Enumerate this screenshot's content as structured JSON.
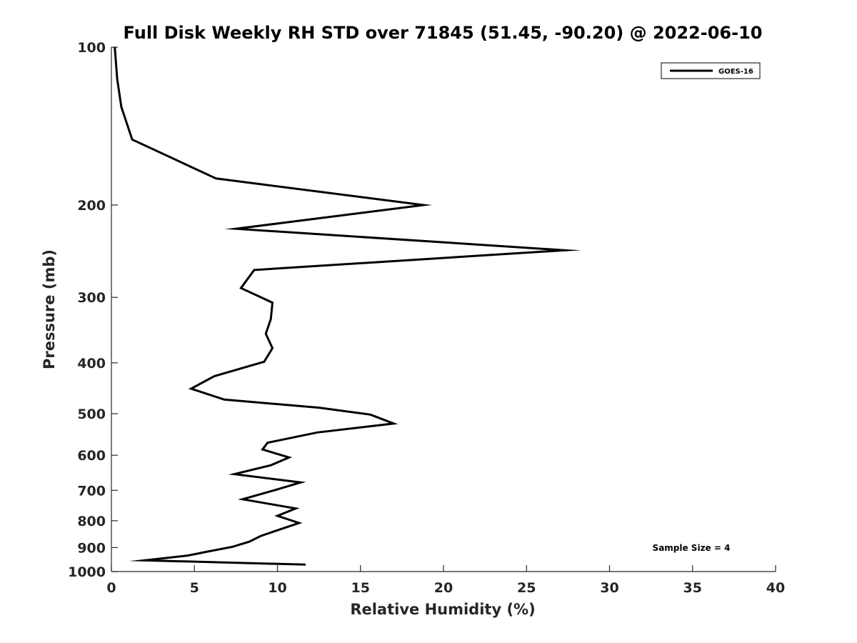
{
  "chart_data": {
    "type": "line",
    "title": "Full Disk Weekly RH STD over 71845 (51.45, -90.20) @ 2022-06-10",
    "xlabel": "Relative Humidity (%)",
    "ylabel": "Pressure (mb)",
    "xlim": [
      0,
      40
    ],
    "ylim": [
      100,
      1000
    ],
    "y_scale": "log",
    "y_reversed": true,
    "x_ticks": [
      0,
      5,
      10,
      15,
      20,
      25,
      30,
      35,
      40
    ],
    "y_ticks": [
      100,
      200,
      300,
      400,
      500,
      600,
      700,
      800,
      900,
      1000
    ],
    "grid": false,
    "legend": {
      "position": "top-right",
      "entries": [
        "GOES-16"
      ]
    },
    "annotation": "Sample Size = 4",
    "series": [
      {
        "name": "GOES-16",
        "color": "#000000",
        "x": [
          0.2,
          0.35,
          0.6,
          1.25,
          6.3,
          18.8,
          7.5,
          27.3,
          8.6,
          7.8,
          9.7,
          9.6,
          9.3,
          9.7,
          9.2,
          6.2,
          4.8,
          6.8,
          12.5,
          15.6,
          17.0,
          12.4,
          9.4,
          9.1,
          10.7,
          9.6,
          7.4,
          11.4,
          9.8,
          7.9,
          11.1,
          10.0,
          11.3,
          10.1,
          9.0,
          8.3,
          7.3,
          5.8,
          4.6,
          2.0,
          11.7
        ],
        "y": [
          100,
          115,
          130,
          150,
          178,
          200,
          222,
          244,
          266,
          288,
          307,
          330,
          352,
          375,
          398,
          424,
          448,
          470,
          487,
          502,
          522,
          543,
          568,
          585,
          606,
          627,
          652,
          676,
          700,
          728,
          758,
          783,
          808,
          832,
          855,
          877,
          897,
          916,
          932,
          952,
          970
        ]
      }
    ]
  }
}
